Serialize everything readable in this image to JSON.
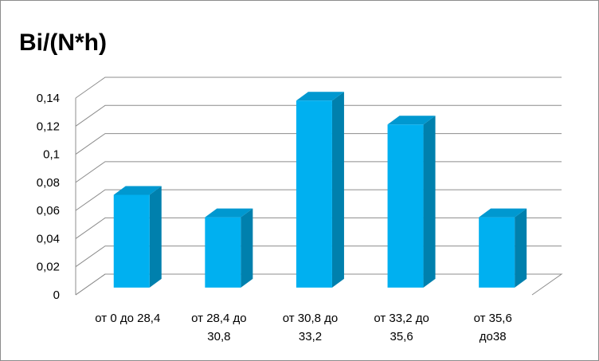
{
  "chart_data": {
    "type": "bar3d",
    "title": "Bi/(N*h)",
    "categories": [
      "от 0 до 28,4",
      "от 28,4 до\n30,8",
      "от 30,8 до\n33,2",
      "от 33,2 до\n35,6",
      "от 35,6\nдо38"
    ],
    "values": [
      0.066,
      0.05,
      0.133,
      0.116,
      0.05
    ],
    "color": "#00b0f0",
    "ylim": [
      0,
      0.14
    ],
    "yticks": [
      0,
      {
        "value": 0.02,
        "label": "0,02"
      },
      {
        "value": 0.04,
        "label": "0,04"
      },
      {
        "value": 0.06,
        "label": "0,06"
      },
      {
        "value": 0.08,
        "label": "0,08"
      },
      {
        "value": 0.1,
        "label": "0,1"
      },
      {
        "value": 0.12,
        "label": "0,12"
      },
      {
        "value": 0.14,
        "label": "0,14"
      }
    ],
    "grid": true
  }
}
